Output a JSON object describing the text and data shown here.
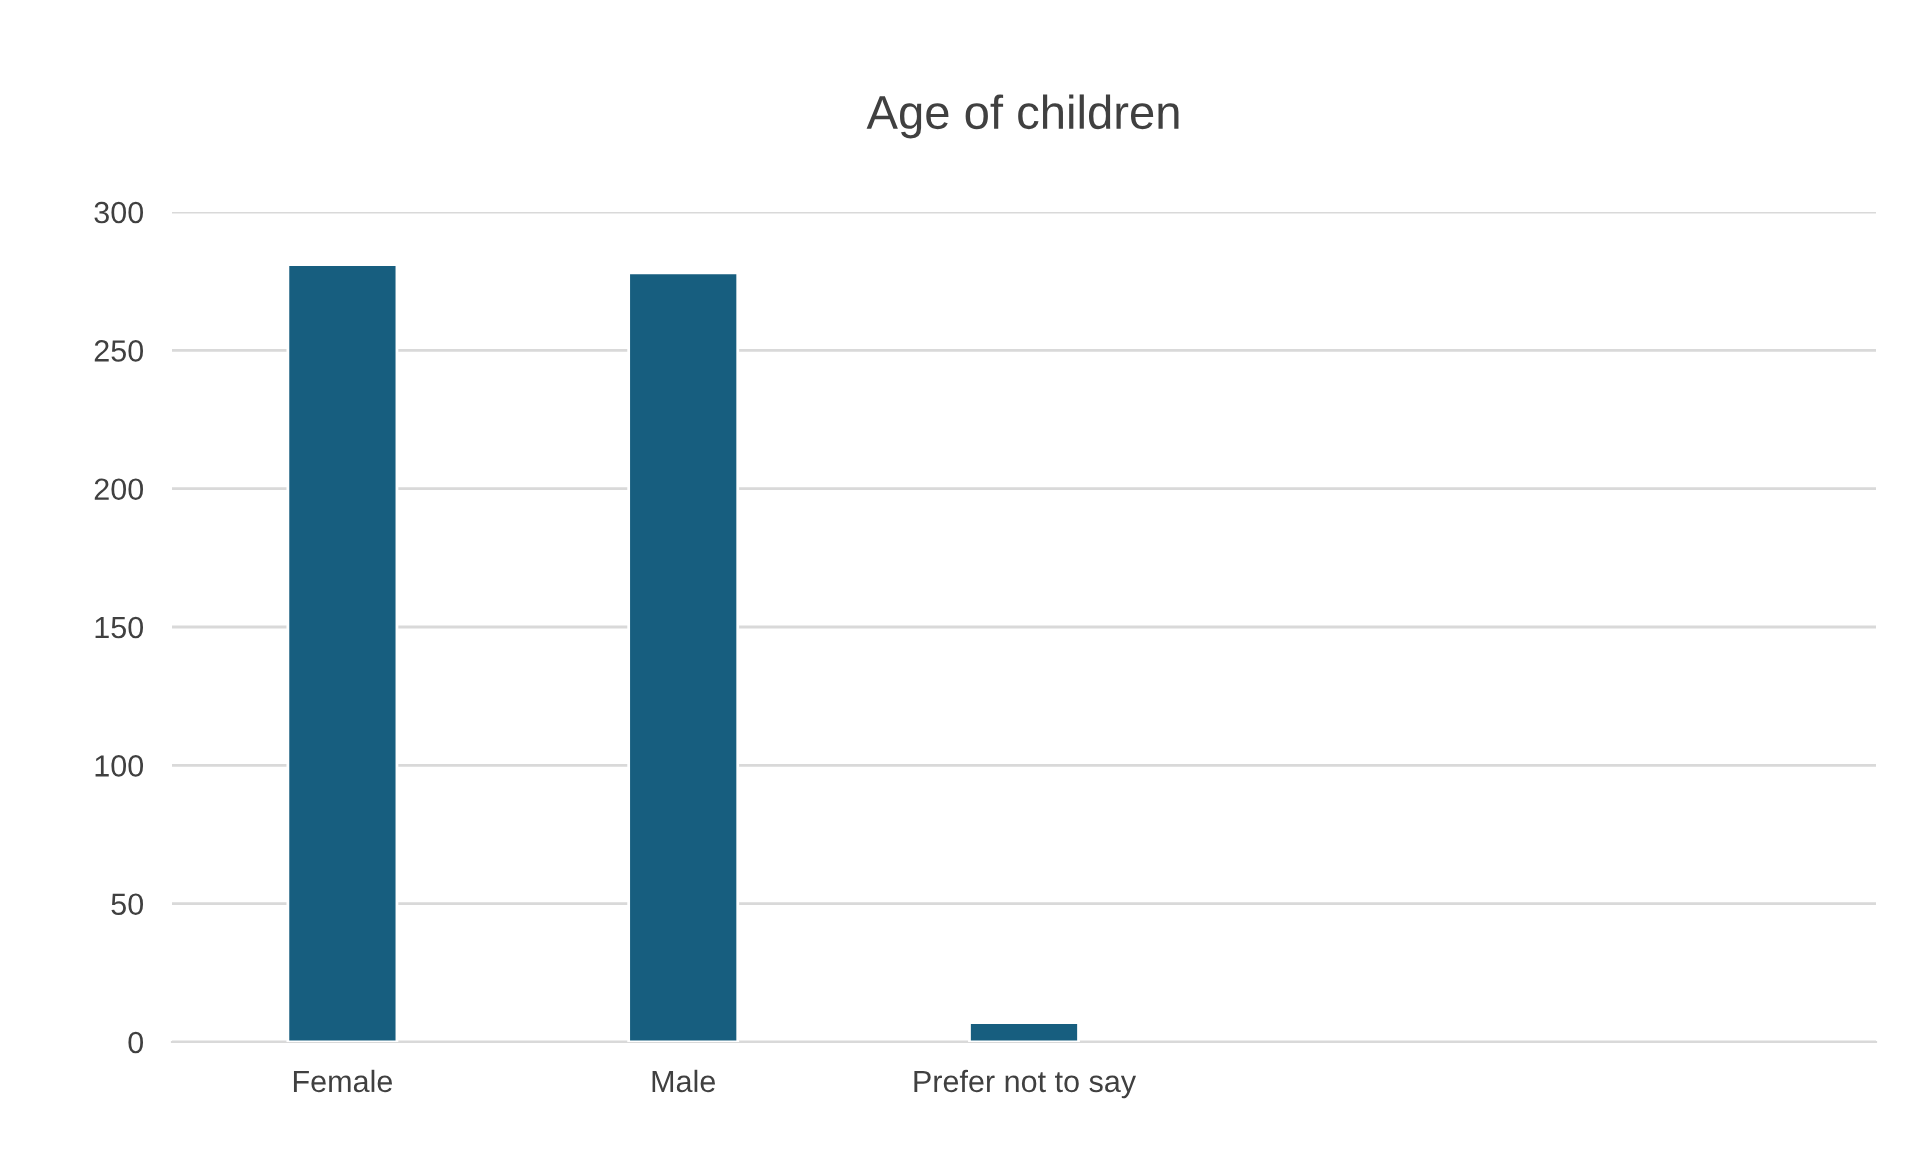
{
  "chart_data": {
    "type": "bar",
    "title": "Age of children",
    "categories": [
      "Female",
      "Male",
      "Prefer not to say",
      null,
      null
    ],
    "values": [
      281,
      278,
      7,
      null,
      null
    ],
    "color": "#175e7f",
    "ylim": [
      0,
      300
    ],
    "yticks": [
      0,
      50,
      100,
      150,
      200,
      250,
      300
    ],
    "grid": "y",
    "legend": false
  }
}
